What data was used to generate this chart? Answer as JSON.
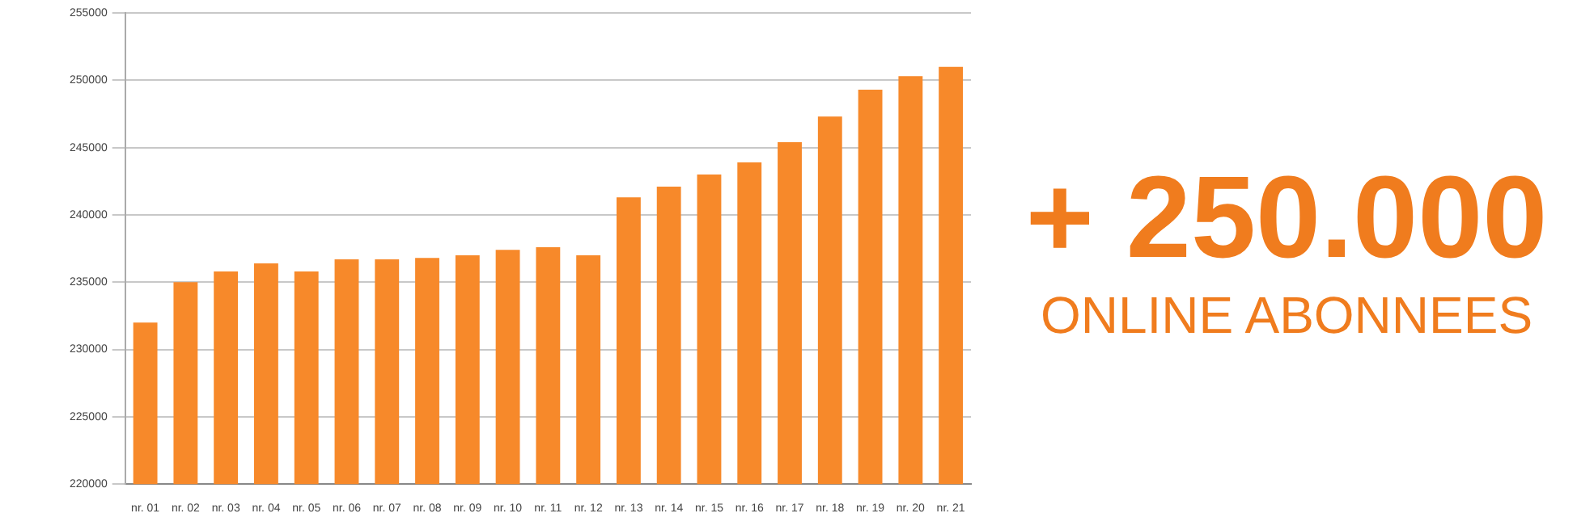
{
  "chart_data": {
    "type": "bar",
    "categories": [
      "nr. 01",
      "nr. 02",
      "nr. 03",
      "nr. 04",
      "nr. 05",
      "nr. 06",
      "nr. 07",
      "nr. 08",
      "nr. 09",
      "nr. 10",
      "nr. 11",
      "nr. 12",
      "nr. 13",
      "nr. 14",
      "nr. 15",
      "nr. 16",
      "nr. 17",
      "nr. 18",
      "nr. 19",
      "nr. 20",
      "nr. 21"
    ],
    "values": [
      232000,
      235000,
      235800,
      236400,
      235800,
      236700,
      236700,
      236800,
      237000,
      237400,
      237600,
      237000,
      241300,
      242100,
      243000,
      243900,
      245400,
      247300,
      249300,
      250300,
      251000
    ],
    "color": "#f7892a",
    "ylim": [
      220000,
      255000
    ],
    "yticks": [
      220000,
      225000,
      230000,
      235000,
      240000,
      245000,
      250000,
      255000
    ],
    "grid": "y",
    "annotations": [
      "+ 250.000",
      "ONLINE ABONNEES"
    ]
  }
}
